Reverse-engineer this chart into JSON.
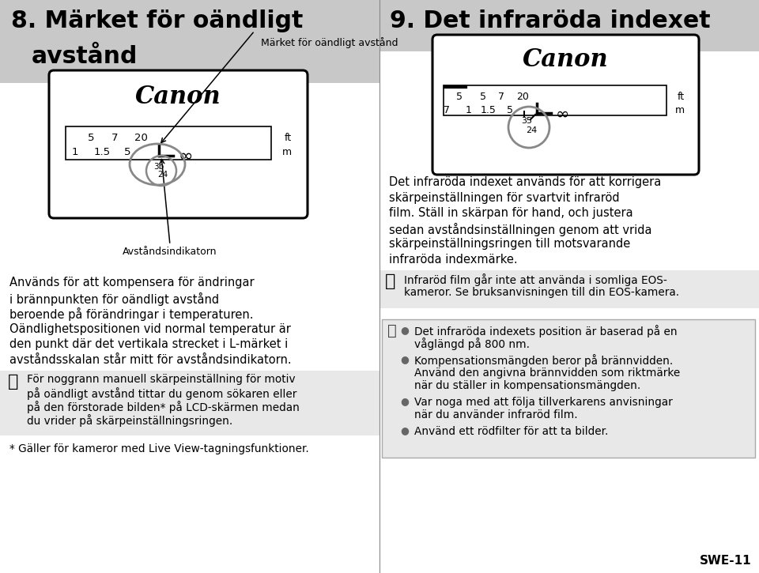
{
  "bg_color": "#ffffff",
  "header_bg": "#c8c8c8",
  "left_title_line1": "8. Märket för oändligt",
  "left_title_line2": "avstånd",
  "right_title": "9. Det infraröda indexet",
  "camera_label_top": "Märket för oändligt avstånd",
  "camera_label_bottom": "Avståndsindikatorn",
  "body_text_left": [
    "Används för att kompensera för ändringar",
    "i brännpunkten för oändligt avstånd",
    "beroende på förändringar i temperaturen.",
    "Oändlighetspositionen vid normal temperatur är",
    "den punkt där det vertikala strecket i L-märket i",
    "avståndsskalan står mitt för avståndsindikatorn."
  ],
  "warning_text_left": [
    "För noggrann manuell skärpeinställning för motiv",
    "på oändligt avstånd tittar du genom sökaren eller",
    "på den förstorade bilden* på LCD-skärmen medan",
    "du vrider på skärpeinställningsringen."
  ],
  "footnote_left": "* Gäller för kameror med Live View-tagningsfunktioner.",
  "body_text_right": [
    "Det infraröda indexet används för att korrigera",
    "skärpeinställningen för svartvit infraröd",
    "film. Ställ in skärpan för hand, och justera",
    "sedan avståndsinställningen genom att vrida",
    "skärpeinställningsringen till motsvarande",
    "infraröda indexmärke."
  ],
  "warning_text_right": [
    "Infraröd film går inte att använda i somliga EOS-",
    "kameror. Se bruksanvisningen till din EOS-kamera."
  ],
  "bullet_groups": [
    [
      "Det infraröda indexets position är baserad på en",
      "våglängd på 800 nm."
    ],
    [
      "Kompensationsmängden beror på brännvidden.",
      "Använd den angivna brännvidden som riktmärke",
      "när du ställer in kompensationsmängden."
    ],
    [
      "Var noga med att följa tillverkarens anvisningar",
      "när du använder infraröd film."
    ],
    [
      "Använd ett rödfilter för att ta bilder."
    ]
  ],
  "page_num": "SWE-11"
}
